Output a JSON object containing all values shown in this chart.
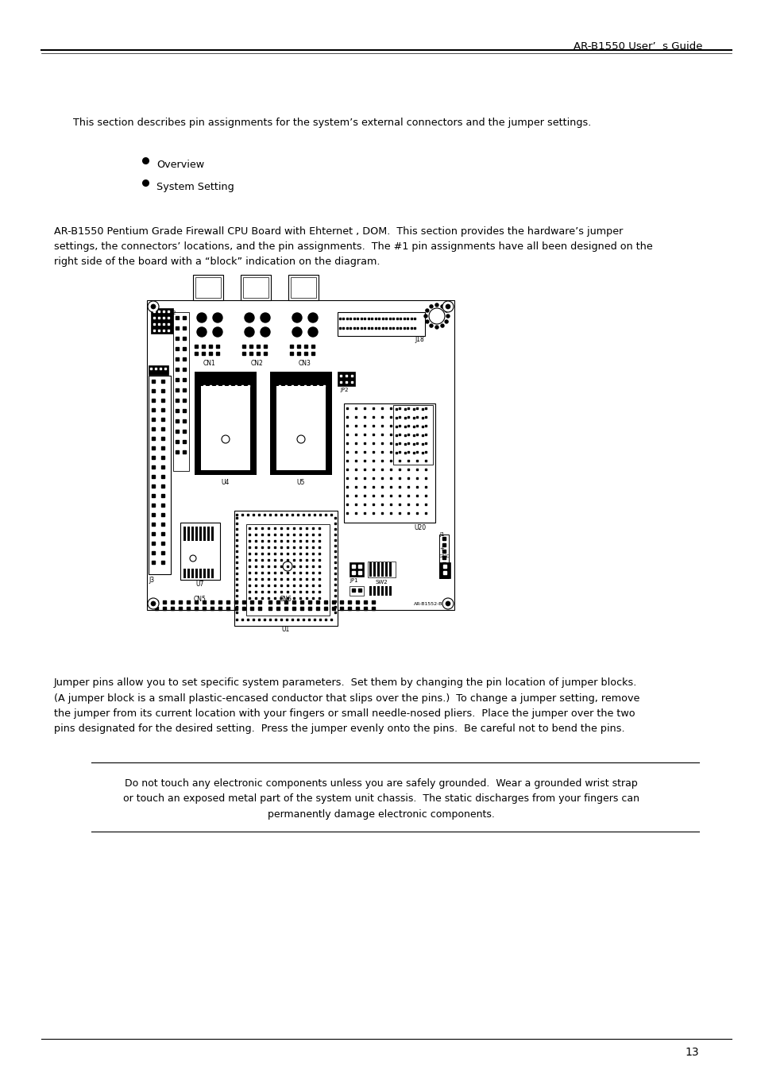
{
  "header_text": "AR-B1550 User’  s Guide",
  "intro_text": "This section describes pin assignments for the system’s external connectors and the jumper settings.",
  "bullet_items": [
    "Overview",
    "System Setting"
  ],
  "body_text_lines": [
    "AR-B1550 Pentium Grade Firewall CPU Board with Ehternet , DOM.  This section provides the hardware’s jumper",
    "settings, the connectors’ locations, and the pin assignments.  The #1 pin assignments have all been designed on the",
    "right side of the board with a “block” indication on the diagram."
  ],
  "jumper_text_lines": [
    "Jumper pins allow you to set specific system parameters.  Set them by changing the pin location of jumper blocks.",
    "(A jumper block is a small plastic-encased conductor that slips over the pins.)  To change a jumper setting, remove",
    "the jumper from its current location with your fingers or small needle-nosed pliers.  Place the jumper over the two",
    "pins designated for the desired setting.  Press the jumper evenly onto the pins.  Be careful not to bend the pins."
  ],
  "warning_lines": [
    "Do not touch any electronic components unless you are safely grounded.  Wear a grounded wrist strap",
    "or touch an exposed metal part of the system unit chassis.  The static discharges from your fingers can",
    "permanently damage electronic components."
  ],
  "page_number": "13",
  "background_color": "#ffffff",
  "text_color": "#000000"
}
